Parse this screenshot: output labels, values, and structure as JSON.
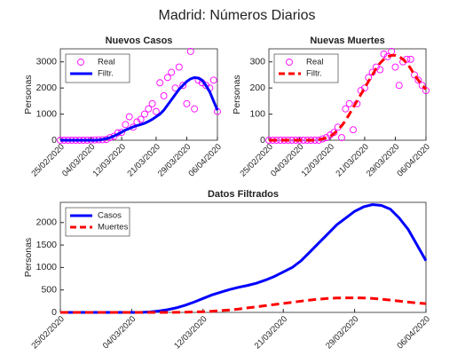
{
  "title": "Madrid: Números Diarios",
  "chart_data": [
    {
      "type": "line",
      "title": "Nuevos Casos",
      "ylabel": "Personas",
      "legend": "northwest",
      "grid": false,
      "x": [
        "25/02/2020",
        "26/02/2020",
        "27/02/2020",
        "28/02/2020",
        "29/02/2020",
        "01/03/2020",
        "02/03/2020",
        "03/03/2020",
        "04/03/2020",
        "05/03/2020",
        "06/03/2020",
        "07/03/2020",
        "08/03/2020",
        "09/03/2020",
        "10/03/2020",
        "11/03/2020",
        "12/03/2020",
        "13/03/2020",
        "14/03/2020",
        "15/03/2020",
        "16/03/2020",
        "17/03/2020",
        "18/03/2020",
        "19/03/2020",
        "20/03/2020",
        "21/03/2020",
        "22/03/2020",
        "23/03/2020",
        "24/03/2020",
        "25/03/2020",
        "26/03/2020",
        "27/03/2020",
        "28/03/2020",
        "29/03/2020",
        "30/03/2020",
        "31/03/2020",
        "01/04/2020",
        "02/04/2020",
        "03/04/2020",
        "04/04/2020",
        "05/04/2020",
        "06/04/2020"
      ],
      "xlim": [
        "25/02/2020",
        "06/04/2020"
      ],
      "xticks": [
        "25/02/2020",
        "04/03/2020",
        "12/03/2020",
        "21/03/2020",
        "29/03/2020",
        "06/04/2020"
      ],
      "ylim": [
        0,
        3500
      ],
      "yticks": [
        0,
        1000,
        2000,
        3000
      ],
      "series": [
        {
          "name": "Real",
          "color": "#ff00ff",
          "marker": "o",
          "linestyle": "none",
          "values": [
            0,
            0,
            0,
            0,
            0,
            0,
            0,
            0,
            5,
            10,
            15,
            20,
            30,
            100,
            150,
            280,
            300,
            600,
            900,
            500,
            700,
            800,
            1000,
            1200,
            1400,
            1100,
            2200,
            1700,
            2400,
            2600,
            2000,
            2800,
            2100,
            1400,
            3400,
            1200,
            2300,
            2200,
            2100,
            2000,
            2300,
            1100
          ]
        },
        {
          "name": "Filtr.",
          "color": "#0000ff",
          "linestyle": "-",
          "values": [
            0,
            0,
            0,
            0,
            0,
            0,
            0,
            0,
            0,
            0,
            10,
            30,
            60,
            100,
            160,
            230,
            310,
            390,
            450,
            510,
            560,
            600,
            650,
            720,
            800,
            900,
            1000,
            1150,
            1350,
            1550,
            1750,
            1950,
            2100,
            2250,
            2350,
            2400,
            2380,
            2300,
            2100,
            1850,
            1500,
            1150
          ]
        }
      ]
    },
    {
      "type": "line",
      "title": "Nuevas Muertes",
      "ylabel": "Personas",
      "legend": "northwest",
      "grid": false,
      "x": [
        "25/02/2020",
        "26/02/2020",
        "27/02/2020",
        "28/02/2020",
        "29/02/2020",
        "01/03/2020",
        "02/03/2020",
        "03/03/2020",
        "04/03/2020",
        "05/03/2020",
        "06/03/2020",
        "07/03/2020",
        "08/03/2020",
        "09/03/2020",
        "10/03/2020",
        "11/03/2020",
        "12/03/2020",
        "13/03/2020",
        "14/03/2020",
        "15/03/2020",
        "16/03/2020",
        "17/03/2020",
        "18/03/2020",
        "19/03/2020",
        "20/03/2020",
        "21/03/2020",
        "22/03/2020",
        "23/03/2020",
        "24/03/2020",
        "25/03/2020",
        "26/03/2020",
        "27/03/2020",
        "28/03/2020",
        "29/03/2020",
        "30/03/2020",
        "31/03/2020",
        "01/04/2020",
        "02/04/2020",
        "03/04/2020",
        "04/04/2020",
        "05/04/2020",
        "06/04/2020"
      ],
      "xlim": [
        "25/02/2020",
        "06/04/2020"
      ],
      "xticks": [
        "25/02/2020",
        "04/03/2020",
        "12/03/2020",
        "21/03/2020",
        "29/03/2020",
        "06/04/2020"
      ],
      "ylim": [
        0,
        350
      ],
      "yticks": [
        0,
        100,
        200,
        300
      ],
      "series": [
        {
          "name": "Real",
          "color": "#ff00ff",
          "marker": "o",
          "linestyle": "none",
          "values": [
            0,
            0,
            0,
            0,
            0,
            0,
            0,
            0,
            0,
            0,
            0,
            0,
            0,
            0,
            5,
            10,
            20,
            30,
            50,
            10,
            120,
            140,
            40,
            140,
            190,
            200,
            240,
            260,
            280,
            270,
            330,
            320,
            340,
            280,
            210,
            300,
            310,
            310,
            250,
            230,
            210,
            190
          ]
        },
        {
          "name": "Filtr.",
          "color": "#ff0000",
          "linestyle": "--",
          "values": [
            0,
            0,
            0,
            0,
            0,
            0,
            0,
            0,
            0,
            0,
            0,
            0,
            0,
            2,
            5,
            10,
            15,
            25,
            40,
            55,
            75,
            100,
            125,
            150,
            175,
            200,
            225,
            250,
            275,
            295,
            310,
            320,
            325,
            325,
            320,
            310,
            295,
            275,
            250,
            230,
            210,
            195
          ]
        }
      ]
    },
    {
      "type": "line",
      "title": "Datos Filtrados",
      "ylabel": "Personas",
      "legend": "northwest",
      "grid": false,
      "x": [
        "25/02/2020",
        "26/02/2020",
        "27/02/2020",
        "28/02/2020",
        "29/02/2020",
        "01/03/2020",
        "02/03/2020",
        "03/03/2020",
        "04/03/2020",
        "05/03/2020",
        "06/03/2020",
        "07/03/2020",
        "08/03/2020",
        "09/03/2020",
        "10/03/2020",
        "11/03/2020",
        "12/03/2020",
        "13/03/2020",
        "14/03/2020",
        "15/03/2020",
        "16/03/2020",
        "17/03/2020",
        "18/03/2020",
        "19/03/2020",
        "20/03/2020",
        "21/03/2020",
        "22/03/2020",
        "23/03/2020",
        "24/03/2020",
        "25/03/2020",
        "26/03/2020",
        "27/03/2020",
        "28/03/2020",
        "29/03/2020",
        "30/03/2020",
        "31/03/2020",
        "01/04/2020",
        "02/04/2020",
        "03/04/2020",
        "04/04/2020",
        "05/04/2020",
        "06/04/2020"
      ],
      "xlim": [
        "25/02/2020",
        "06/04/2020"
      ],
      "xticks": [
        "25/02/2020",
        "04/03/2020",
        "12/03/2020",
        "21/03/2020",
        "29/03/2020",
        "06/04/2020"
      ],
      "ylim": [
        0,
        2450
      ],
      "yticks": [
        0,
        500,
        1000,
        1500,
        2000
      ],
      "series": [
        {
          "name": "Casos",
          "color": "#0000ff",
          "linestyle": "-",
          "values": [
            0,
            0,
            0,
            0,
            0,
            0,
            0,
            0,
            0,
            0,
            10,
            30,
            60,
            100,
            160,
            230,
            310,
            390,
            450,
            510,
            560,
            600,
            650,
            720,
            800,
            900,
            1000,
            1150,
            1350,
            1550,
            1750,
            1950,
            2100,
            2250,
            2350,
            2400,
            2380,
            2300,
            2100,
            1850,
            1500,
            1150
          ]
        },
        {
          "name": "Muertes",
          "color": "#ff0000",
          "linestyle": "--",
          "values": [
            0,
            0,
            0,
            0,
            0,
            0,
            0,
            0,
            0,
            0,
            0,
            0,
            0,
            2,
            5,
            10,
            15,
            25,
            40,
            55,
            75,
            100,
            125,
            150,
            175,
            200,
            225,
            250,
            275,
            295,
            310,
            320,
            325,
            325,
            320,
            310,
            295,
            275,
            250,
            230,
            210,
            195
          ]
        }
      ]
    }
  ]
}
